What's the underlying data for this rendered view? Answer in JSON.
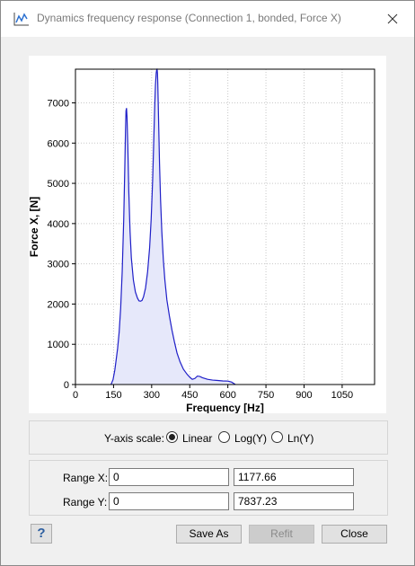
{
  "window": {
    "title": "Dynamics frequency response  (Connection 1, bonded, Force X)",
    "icon": "chart-line-icon",
    "close_icon": "close-icon"
  },
  "chart_data": {
    "type": "area",
    "xlabel": "Frequency [Hz]",
    "ylabel": "Force X,  [N]",
    "xlim": [
      0,
      1177.66
    ],
    "ylim": [
      0,
      7837.23
    ],
    "x_ticks": [
      0,
      150,
      300,
      450,
      600,
      750,
      900,
      1050
    ],
    "y_ticks": [
      0,
      1000,
      2000,
      3000,
      4000,
      5000,
      6000,
      7000
    ],
    "grid": true,
    "line_color": "#1f1fc8",
    "fill_color": "#e6e8fa",
    "series": [
      {
        "x": [
          140,
          148,
          155,
          160,
          166,
          172,
          178,
          184,
          190,
          194,
          197,
          199,
          201,
          203,
          206,
          210,
          215,
          220,
          228,
          236,
          244,
          250,
          256,
          262,
          268,
          276,
          284,
          292,
          298,
          304,
          308,
          312,
          315,
          318,
          320,
          321,
          322,
          323,
          324,
          326,
          328,
          331,
          335,
          340,
          346,
          352,
          360,
          370,
          380,
          390,
          400,
          412,
          425,
          440,
          452,
          460,
          470,
          480,
          490,
          500,
          520,
          540,
          560,
          580,
          600,
          615,
          625,
          630
        ],
        "y": [
          0,
          120,
          360,
          600,
          900,
          1300,
          1900,
          2800,
          4100,
          5300,
          6300,
          6800,
          6870,
          6650,
          5950,
          4800,
          3800,
          3150,
          2600,
          2300,
          2150,
          2080,
          2070,
          2090,
          2180,
          2400,
          2800,
          3400,
          4100,
          5100,
          6000,
          6900,
          7450,
          7750,
          7820,
          7830,
          7800,
          7720,
          7500,
          6950,
          6350,
          5500,
          4600,
          3800,
          3100,
          2600,
          2100,
          1700,
          1350,
          1050,
          780,
          560,
          380,
          250,
          170,
          130,
          150,
          210,
          200,
          170,
          130,
          110,
          100,
          90,
          85,
          60,
          20,
          0
        ]
      }
    ]
  },
  "y_scale": {
    "label": "Y-axis scale:",
    "options": [
      "Linear",
      "Log(Y)",
      "Ln(Y)"
    ],
    "selected": "Linear"
  },
  "range": {
    "x_label": "Range X:",
    "x_min": "0",
    "x_max": "1177.66",
    "y_label": "Range Y:",
    "y_min": "0",
    "y_max": "7837.23"
  },
  "buttons": {
    "help": "?",
    "save_as": "Save As",
    "refit": "Refit",
    "close": "Close"
  }
}
